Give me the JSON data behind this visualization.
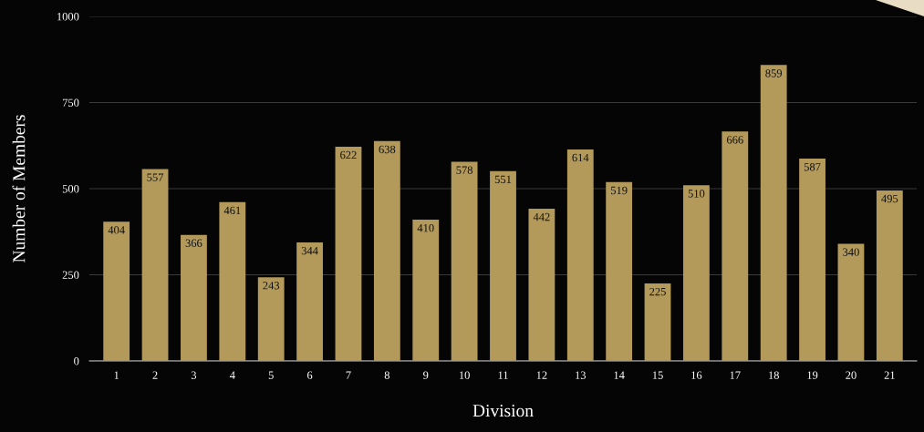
{
  "chart_data": {
    "type": "bar",
    "xlabel": "Division",
    "ylabel": "Number of Members",
    "categories": [
      "1",
      "2",
      "3",
      "4",
      "5",
      "6",
      "7",
      "8",
      "9",
      "10",
      "11",
      "12",
      "13",
      "14",
      "15",
      "16",
      "17",
      "18",
      "19",
      "20",
      "21"
    ],
    "values": [
      404,
      557,
      366,
      461,
      243,
      344,
      622,
      638,
      410,
      578,
      551,
      442,
      614,
      519,
      225,
      510,
      666,
      859,
      587,
      340,
      495
    ],
    "color": "#b39a5b",
    "ylim": [
      0,
      1000
    ],
    "yticks": [
      0,
      250,
      500,
      750,
      1000
    ],
    "grid": "y",
    "data_labels": true
  }
}
